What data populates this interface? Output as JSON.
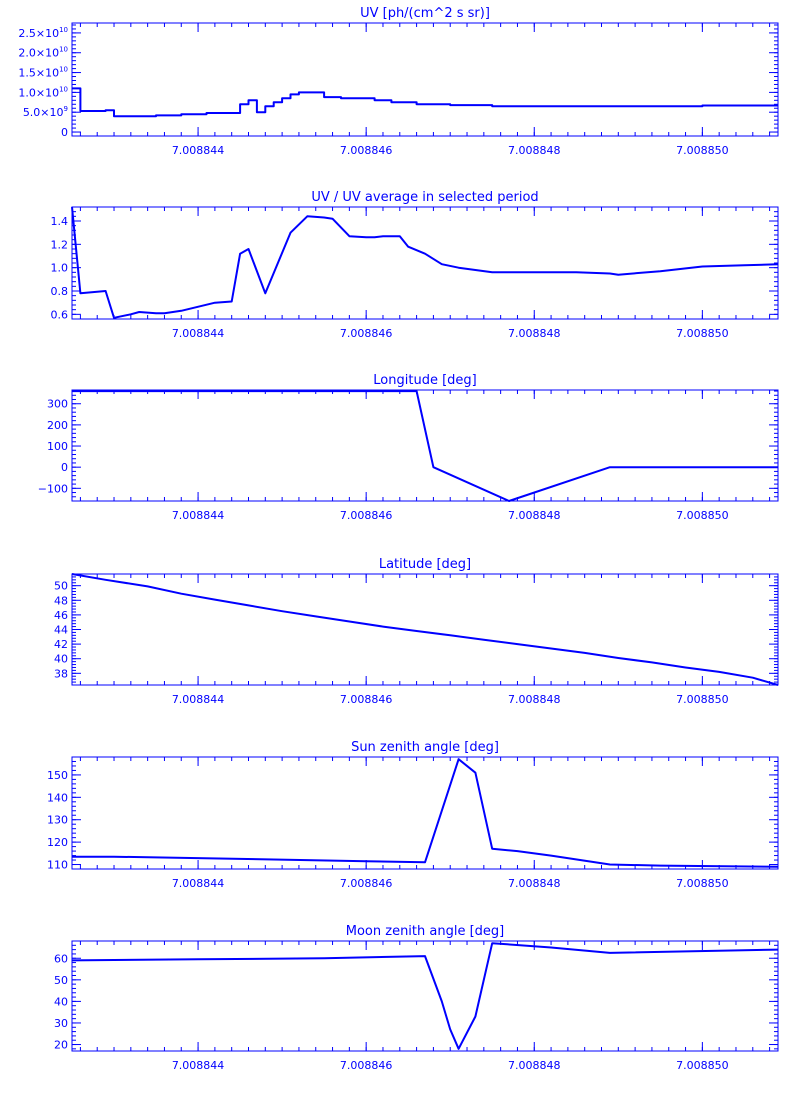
{
  "colors": {
    "line": "#0000ff",
    "background": "#ffffff"
  },
  "chart_data": [
    {
      "type": "line",
      "title": "UV [ph/(cm^2 s sr)]",
      "x_tick_labels": [
        "7.008844",
        "7.008846",
        "7.008848",
        "7.008850"
      ],
      "xlim": [
        7.0088425,
        7.0088509
      ],
      "x_ticks": [
        7.008844,
        7.008846,
        7.008848,
        7.00885
      ],
      "ylim": [
        -1000000000.0,
        27500000000.0
      ],
      "y_ticks": [
        {
          "value": 0,
          "label": "0"
        },
        {
          "value": 5000000000.0,
          "label": "5.0×10",
          "exp": "9"
        },
        {
          "value": 10000000000.0,
          "label": "1.0×10",
          "exp": "10"
        },
        {
          "value": 15000000000.0,
          "label": "1.5×10",
          "exp": "10"
        },
        {
          "value": 20000000000.0,
          "label": "2.0×10",
          "exp": "10"
        },
        {
          "value": 25000000000.0,
          "label": "2.5×10",
          "exp": "10"
        }
      ],
      "grid": false,
      "series": [
        {
          "step": true,
          "x": [
            7.0088425,
            7.0088426,
            7.0088429,
            7.008843,
            7.0088435,
            7.0088438,
            7.0088441,
            7.0088445,
            7.0088446,
            7.0088447,
            7.0088448,
            7.0088449,
            7.008845,
            7.0088451,
            7.0088452,
            7.0088453,
            7.0088455,
            7.0088457,
            7.0088459,
            7.0088461,
            7.0088463,
            7.0088466,
            7.008847,
            7.0088475,
            7.008848,
            7.0088485,
            7.008849,
            7.0088495,
            7.00885,
            7.0088509
          ],
          "y": [
            11000000000.0,
            5300000000.0,
            5500000000.0,
            4000000000.0,
            4200000000.0,
            4500000000.0,
            4800000000.0,
            7000000000.0,
            8000000000.0,
            5000000000.0,
            6500000000.0,
            7500000000.0,
            8500000000.0,
            9500000000.0,
            10000000000.0,
            10000000000.0,
            8800000000.0,
            8500000000.0,
            8500000000.0,
            8000000000.0,
            7500000000.0,
            7000000000.0,
            6800000000.0,
            6500000000.0,
            6500000000.0,
            6500000000.0,
            6500000000.0,
            6500000000.0,
            6700000000.0,
            6700000000.0
          ]
        }
      ]
    },
    {
      "type": "line",
      "title": "UV / UV average in selected period",
      "x_tick_labels": [
        "7.008844",
        "7.008846",
        "7.008848",
        "7.008850"
      ],
      "xlim": [
        7.0088425,
        7.0088509
      ],
      "x_ticks": [
        7.008844,
        7.008846,
        7.008848,
        7.00885
      ],
      "ylim": [
        0.56,
        1.52
      ],
      "y_ticks": [
        {
          "value": 0.6,
          "label": "0.6"
        },
        {
          "value": 0.8,
          "label": "0.8"
        },
        {
          "value": 1.0,
          "label": "1.0"
        },
        {
          "value": 1.2,
          "label": "1.2"
        },
        {
          "value": 1.4,
          "label": "1.4"
        }
      ],
      "grid": false,
      "series": [
        {
          "step": false,
          "x": [
            7.0088425,
            7.0088426,
            7.0088429,
            7.008843,
            7.0088432,
            7.0088433,
            7.0088435,
            7.0088436,
            7.0088438,
            7.0088442,
            7.0088444,
            7.0088445,
            7.0088446,
            7.0088448,
            7.0088451,
            7.0088453,
            7.0088455,
            7.0088456,
            7.0088458,
            7.008846,
            7.0088461,
            7.0088462,
            7.0088464,
            7.0088465,
            7.0088467,
            7.0088469,
            7.0088471,
            7.0088475,
            7.008848,
            7.0088485,
            7.0088489,
            7.008849,
            7.0088495,
            7.00885,
            7.0088505,
            7.0088509
          ],
          "y": [
            1.52,
            0.78,
            0.8,
            0.57,
            0.6,
            0.62,
            0.61,
            0.61,
            0.63,
            0.7,
            0.71,
            1.12,
            1.16,
            0.78,
            1.3,
            1.44,
            1.43,
            1.42,
            1.27,
            1.26,
            1.26,
            1.27,
            1.27,
            1.18,
            1.12,
            1.03,
            1.0,
            0.96,
            0.96,
            0.96,
            0.95,
            0.94,
            0.97,
            1.01,
            1.02,
            1.03
          ]
        }
      ]
    },
    {
      "type": "line",
      "title": "Longitude [deg]",
      "x_tick_labels": [
        "7.008844",
        "7.008846",
        "7.008848",
        "7.008850"
      ],
      "xlim": [
        7.0088425,
        7.0088509
      ],
      "x_ticks": [
        7.008844,
        7.008846,
        7.008848,
        7.00885
      ],
      "ylim": [
        -160,
        365
      ],
      "y_ticks": [
        {
          "value": -100,
          "label": "−100"
        },
        {
          "value": 0,
          "label": "0"
        },
        {
          "value": 100,
          "label": "100"
        },
        {
          "value": 200,
          "label": "200"
        },
        {
          "value": 300,
          "label": "300"
        }
      ],
      "grid": false,
      "series": [
        {
          "step": false,
          "x": [
            7.0088425,
            7.0088466,
            7.0088468,
            7.0088477,
            7.0088489,
            7.0088509
          ],
          "y": [
            360,
            360,
            0,
            -160,
            0,
            0
          ]
        }
      ]
    },
    {
      "type": "line",
      "title": "Latitude [deg]",
      "x_tick_labels": [
        "7.008844",
        "7.008846",
        "7.008848",
        "7.008850"
      ],
      "xlim": [
        7.0088425,
        7.0088509
      ],
      "x_ticks": [
        7.008844,
        7.008846,
        7.008848,
        7.00885
      ],
      "ylim": [
        36.4,
        51.6
      ],
      "y_ticks": [
        {
          "value": 38,
          "label": "38"
        },
        {
          "value": 40,
          "label": "40"
        },
        {
          "value": 42,
          "label": "42"
        },
        {
          "value": 44,
          "label": "44"
        },
        {
          "value": 46,
          "label": "46"
        },
        {
          "value": 48,
          "label": "48"
        },
        {
          "value": 50,
          "label": "50"
        }
      ],
      "grid": false,
      "series": [
        {
          "step": false,
          "x": [
            7.0088425,
            7.0088429,
            7.0088434,
            7.0088438,
            7.0088442,
            7.0088446,
            7.008845,
            7.0088454,
            7.0088458,
            7.0088462,
            7.0088466,
            7.008847,
            7.0088474,
            7.0088478,
            7.0088482,
            7.0088486,
            7.008849,
            7.0088494,
            7.0088498,
            7.0088502,
            7.0088506,
            7.0088509
          ],
          "y": [
            51.6,
            50.8,
            49.9,
            48.9,
            48.1,
            47.3,
            46.5,
            45.8,
            45.1,
            44.4,
            43.8,
            43.2,
            42.6,
            42.0,
            41.4,
            40.8,
            40.1,
            39.5,
            38.8,
            38.2,
            37.4,
            36.4
          ]
        }
      ]
    },
    {
      "type": "line",
      "title": "Sun zenith angle [deg]",
      "x_tick_labels": [
        "7.008844",
        "7.008846",
        "7.008848",
        "7.008850"
      ],
      "xlim": [
        7.0088425,
        7.0088509
      ],
      "x_ticks": [
        7.008844,
        7.008846,
        7.008848,
        7.00885
      ],
      "ylim": [
        108,
        158
      ],
      "y_ticks": [
        {
          "value": 110,
          "label": "110"
        },
        {
          "value": 120,
          "label": "120"
        },
        {
          "value": 130,
          "label": "130"
        },
        {
          "value": 140,
          "label": "140"
        },
        {
          "value": 150,
          "label": "150"
        }
      ],
      "grid": false,
      "series": [
        {
          "step": false,
          "x": [
            7.0088425,
            7.008843,
            7.0088445,
            7.008846,
            7.0088467,
            7.0088471,
            7.0088473,
            7.0088475,
            7.0088478,
            7.0088482,
            7.0088489,
            7.0088495,
            7.0088509
          ],
          "y": [
            113.5,
            113.5,
            112.5,
            111.5,
            111.0,
            157.0,
            151.0,
            117.0,
            116.0,
            114.0,
            110.0,
            109.5,
            109.0
          ]
        }
      ]
    },
    {
      "type": "line",
      "title": "Moon zenith angle [deg]",
      "x_tick_labels": [
        "7.008844",
        "7.008846",
        "7.008848",
        "7.008850"
      ],
      "xlim": [
        7.0088425,
        7.0088509
      ],
      "x_ticks": [
        7.008844,
        7.008846,
        7.008848,
        7.00885
      ],
      "ylim": [
        17,
        68
      ],
      "y_ticks": [
        {
          "value": 20,
          "label": "20"
        },
        {
          "value": 30,
          "label": "30"
        },
        {
          "value": 40,
          "label": "40"
        },
        {
          "value": 50,
          "label": "50"
        },
        {
          "value": 60,
          "label": "60"
        }
      ],
      "grid": false,
      "series": [
        {
          "step": false,
          "x": [
            7.0088425,
            7.008844,
            7.0088455,
            7.0088467,
            7.0088469,
            7.008847,
            7.0088471,
            7.0088473,
            7.0088475,
            7.0088482,
            7.0088489,
            7.0088509
          ],
          "y": [
            59,
            59.5,
            60,
            61,
            40,
            27,
            18,
            33,
            67,
            65,
            62.5,
            64
          ]
        }
      ]
    }
  ]
}
